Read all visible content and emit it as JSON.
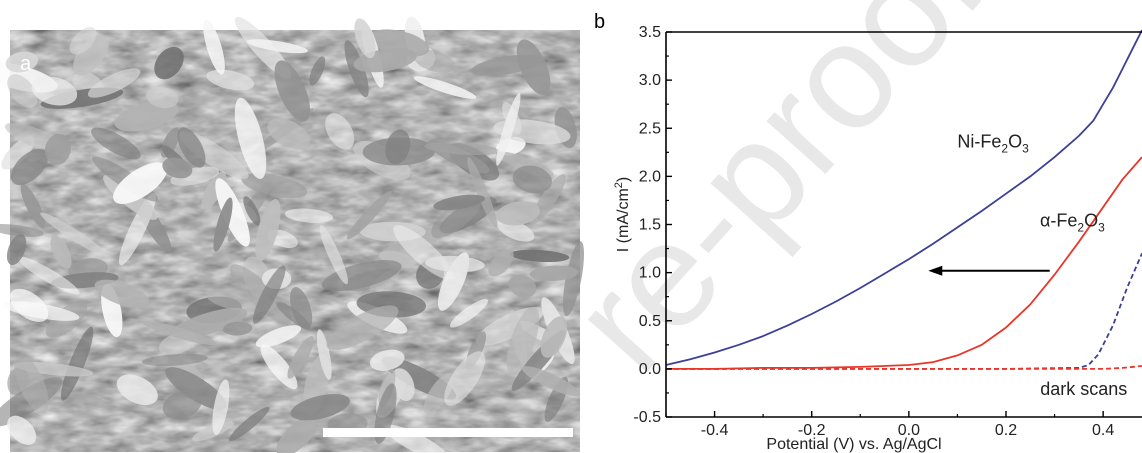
{
  "panels": {
    "a": "a",
    "b": "b"
  },
  "watermark": "re-proof",
  "colors": {
    "ni_fe2o3": "#3c3f96",
    "alpha_fe2o3": "#e8362a",
    "axis": "#000000"
  },
  "chart_data": {
    "type": "line",
    "xlabel": "Potential (V) vs. Ag/AgCl",
    "ylabel_parts": [
      "I (mA/cm",
      "2",
      ")"
    ],
    "xlim": [
      -0.5,
      0.48
    ],
    "ylim": [
      -0.5,
      3.5
    ],
    "xticks": [
      -0.4,
      -0.2,
      0.0,
      0.2,
      0.4
    ],
    "xtick_labels": [
      "-0.4",
      "-0.2",
      "0.0",
      "0.2",
      "0.4"
    ],
    "yticks": [
      -0.5,
      0.0,
      0.5,
      1.0,
      1.5,
      2.0,
      2.5,
      3.0,
      3.5
    ],
    "ytick_labels": [
      "-0.5",
      "0.0",
      "0.5",
      "1.0",
      "1.5",
      "2.0",
      "2.5",
      "3.0",
      "3.5"
    ],
    "grid": false,
    "series": [
      {
        "name_parts": [
          "Ni-Fe",
          "2",
          "O",
          "3"
        ],
        "style": "solid",
        "color_key": "ni_fe2o3",
        "x": [
          -0.5,
          -0.45,
          -0.4,
          -0.35,
          -0.3,
          -0.25,
          -0.2,
          -0.15,
          -0.1,
          -0.05,
          0.0,
          0.05,
          0.1,
          0.15,
          0.2,
          0.25,
          0.3,
          0.35,
          0.38,
          0.4,
          0.42,
          0.44,
          0.46,
          0.48
        ],
        "y": [
          0.04,
          0.1,
          0.17,
          0.25,
          0.34,
          0.45,
          0.57,
          0.7,
          0.84,
          0.99,
          1.14,
          1.3,
          1.47,
          1.64,
          1.82,
          2.0,
          2.2,
          2.42,
          2.58,
          2.75,
          2.92,
          3.12,
          3.32,
          3.52
        ]
      },
      {
        "name_parts": [
          "α-Fe",
          "2",
          "O",
          "3"
        ],
        "style": "solid",
        "color_key": "alpha_fe2o3",
        "x": [
          -0.5,
          -0.4,
          -0.3,
          -0.2,
          -0.1,
          0.0,
          0.05,
          0.1,
          0.15,
          0.2,
          0.25,
          0.3,
          0.35,
          0.4,
          0.44,
          0.48
        ],
        "y": [
          0.0,
          0.0,
          0.01,
          0.01,
          0.02,
          0.04,
          0.07,
          0.14,
          0.25,
          0.43,
          0.67,
          0.98,
          1.32,
          1.68,
          1.97,
          2.2
        ]
      },
      {
        "name": "dark scans",
        "style": "dashed",
        "color_key": "ni_fe2o3",
        "x": [
          -0.5,
          -0.2,
          0.0,
          0.2,
          0.35,
          0.37,
          0.39,
          0.42,
          0.45,
          0.48
        ],
        "y": [
          0.0,
          0.0,
          0.0,
          0.0,
          0.01,
          0.04,
          0.15,
          0.45,
          0.85,
          1.2
        ]
      },
      {
        "name": "dark scans",
        "style": "dashed",
        "color_key": "alpha_fe2o3",
        "x": [
          -0.5,
          0.0,
          0.3,
          0.4,
          0.44,
          0.48
        ],
        "y": [
          0.0,
          0.0,
          0.0,
          0.0,
          0.01,
          0.03
        ]
      }
    ],
    "annotations": [
      {
        "text_parts": [
          "Ni-Fe",
          "2",
          "O",
          "3"
        ],
        "at": [
          0.1,
          2.3
        ]
      },
      {
        "text_parts": [
          "α-Fe",
          "2",
          "O",
          "3"
        ],
        "at": [
          0.27,
          1.48
        ]
      },
      {
        "text": "dark scans",
        "at": [
          0.36,
          -0.27
        ]
      }
    ],
    "arrow": {
      "from": [
        0.29,
        1.02
      ],
      "to": [
        0.04,
        1.02
      ],
      "direction": "left"
    }
  }
}
